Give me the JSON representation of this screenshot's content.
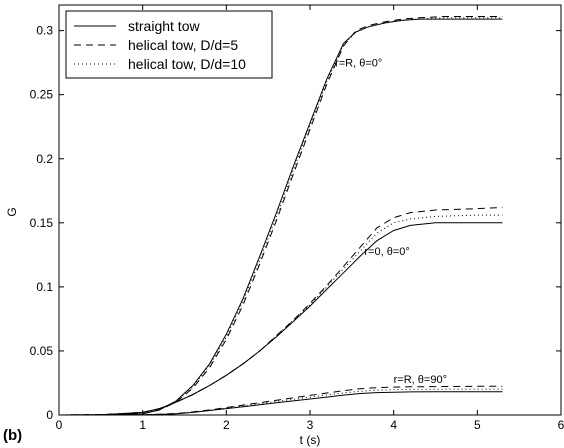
{
  "panel_label": "(b)",
  "chart_data": {
    "type": "line",
    "title": "",
    "xlabel": "t (s)",
    "ylabel": "G",
    "xlim": [
      0,
      6
    ],
    "ylim": [
      0,
      0.32
    ],
    "xticks": [
      0,
      1,
      2,
      3,
      4,
      5,
      6
    ],
    "yticks": [
      0,
      0.05,
      0.1,
      0.15,
      0.2,
      0.25,
      0.3
    ],
    "xtick_labels": [
      "0",
      "1",
      "2",
      "3",
      "4",
      "5",
      "6"
    ],
    "ytick_labels": [
      "0",
      "0.05",
      "0.1",
      "0.15",
      "0.2",
      "0.25",
      "0.3"
    ],
    "grid": false,
    "legend_position": "top-left",
    "legend": [
      {
        "label": "straight tow",
        "style": "solid"
      },
      {
        "label": "helical tow, D/d=5",
        "style": "dashed"
      },
      {
        "label": "helical tow, D/d=10",
        "style": "dotted"
      }
    ],
    "annotations": [
      {
        "text": "r=R, θ=0°",
        "x": 3.3,
        "y": 0.272
      },
      {
        "text": "r=0, θ=0°",
        "x": 3.65,
        "y": 0.125
      },
      {
        "text": "r=R, θ=90°",
        "x": 4.0,
        "y": 0.025
      }
    ],
    "groups": [
      {
        "name": "r=R, θ=0°",
        "series": [
          {
            "name": "straight tow",
            "style": "solid",
            "x": [
              0,
              0.5,
              1.0,
              1.2,
              1.4,
              1.6,
              1.8,
              2.0,
              2.2,
              2.4,
              2.6,
              2.8,
              3.0,
              3.2,
              3.4,
              3.55,
              3.7,
              3.9,
              4.1,
              4.3,
              4.6,
              5.0,
              5.3
            ],
            "y": [
              0,
              0.0002,
              0.001,
              0.004,
              0.011,
              0.023,
              0.04,
              0.063,
              0.091,
              0.124,
              0.158,
              0.194,
              0.228,
              0.262,
              0.29,
              0.299,
              0.303,
              0.306,
              0.308,
              0.309,
              0.309,
              0.309,
              0.309
            ]
          },
          {
            "name": "helical tow, D/d=5",
            "style": "dashed",
            "x": [
              0,
              0.5,
              1.0,
              1.2,
              1.4,
              1.6,
              1.8,
              2.0,
              2.2,
              2.4,
              2.6,
              2.8,
              3.0,
              3.2,
              3.4,
              3.55,
              3.7,
              3.9,
              4.1,
              4.3,
              4.6,
              5.0,
              5.3
            ],
            "y": [
              0,
              0.0002,
              0.001,
              0.004,
              0.01,
              0.021,
              0.037,
              0.059,
              0.086,
              0.118,
              0.152,
              0.188,
              0.223,
              0.258,
              0.288,
              0.3,
              0.304,
              0.307,
              0.309,
              0.31,
              0.311,
              0.311,
              0.311
            ]
          },
          {
            "name": "helical tow, D/d=10",
            "style": "dotted",
            "x": [
              0,
              0.5,
              1.0,
              1.2,
              1.4,
              1.6,
              1.8,
              2.0,
              2.2,
              2.4,
              2.6,
              2.8,
              3.0,
              3.2,
              3.4,
              3.55,
              3.7,
              3.9,
              4.1,
              4.3,
              4.6,
              5.0,
              5.3
            ],
            "y": [
              0,
              0.0002,
              0.001,
              0.004,
              0.01,
              0.022,
              0.039,
              0.061,
              0.089,
              0.121,
              0.155,
              0.191,
              0.226,
              0.26,
              0.289,
              0.299,
              0.303,
              0.306,
              0.308,
              0.309,
              0.31,
              0.31,
              0.31
            ]
          }
        ]
      },
      {
        "name": "r=0, θ=0°",
        "series": [
          {
            "name": "straight tow",
            "style": "solid",
            "x": [
              0,
              0.5,
              1.0,
              1.2,
              1.4,
              1.6,
              1.8,
              2.0,
              2.2,
              2.4,
              2.6,
              2.8,
              3.0,
              3.2,
              3.4,
              3.6,
              3.8,
              4.0,
              4.2,
              4.5,
              5.0,
              5.3
            ],
            "y": [
              0,
              0.0002,
              0.002,
              0.005,
              0.01,
              0.016,
              0.023,
              0.031,
              0.04,
              0.05,
              0.061,
              0.073,
              0.085,
              0.098,
              0.111,
              0.124,
              0.136,
              0.144,
              0.148,
              0.15,
              0.15,
              0.15
            ]
          },
          {
            "name": "helical tow, D/d=5",
            "style": "dashed",
            "x": [
              0,
              0.5,
              1.0,
              1.2,
              1.4,
              1.6,
              1.8,
              2.0,
              2.2,
              2.4,
              2.6,
              2.8,
              3.0,
              3.2,
              3.4,
              3.6,
              3.8,
              4.0,
              4.2,
              4.5,
              5.0,
              5.3
            ],
            "y": [
              0,
              0.0002,
              0.002,
              0.005,
              0.01,
              0.016,
              0.023,
              0.031,
              0.04,
              0.05,
              0.062,
              0.074,
              0.087,
              0.101,
              0.116,
              0.131,
              0.146,
              0.154,
              0.158,
              0.16,
              0.161,
              0.162
            ]
          },
          {
            "name": "helical tow, D/d=10",
            "style": "dotted",
            "x": [
              0,
              0.5,
              1.0,
              1.2,
              1.4,
              1.6,
              1.8,
              2.0,
              2.2,
              2.4,
              2.6,
              2.8,
              3.0,
              3.2,
              3.4,
              3.6,
              3.8,
              4.0,
              4.2,
              4.5,
              5.0,
              5.3
            ],
            "y": [
              0,
              0.0002,
              0.002,
              0.005,
              0.01,
              0.016,
              0.023,
              0.031,
              0.04,
              0.05,
              0.062,
              0.074,
              0.086,
              0.1,
              0.114,
              0.128,
              0.142,
              0.15,
              0.153,
              0.155,
              0.156,
              0.156
            ]
          }
        ]
      },
      {
        "name": "r=R, θ=90°",
        "series": [
          {
            "name": "straight tow",
            "style": "solid",
            "x": [
              0,
              0.5,
              1.0,
              1.2,
              1.4,
              1.6,
              1.8,
              2.0,
              2.2,
              2.4,
              2.6,
              2.8,
              3.0,
              3.2,
              3.4,
              3.6,
              3.8,
              4.0,
              4.2,
              4.5,
              5.0,
              5.3
            ],
            "y": [
              0,
              0,
              0.0001,
              0.0005,
              0.001,
              0.002,
              0.0035,
              0.005,
              0.0065,
              0.008,
              0.0095,
              0.011,
              0.0125,
              0.014,
              0.0155,
              0.0168,
              0.0175,
              0.0178,
              0.018,
              0.0181,
              0.0182,
              0.0182
            ]
          },
          {
            "name": "helical tow, D/d=5",
            "style": "dashed",
            "x": [
              0,
              0.5,
              1.0,
              1.2,
              1.4,
              1.6,
              1.8,
              2.0,
              2.2,
              2.4,
              2.6,
              2.8,
              3.0,
              3.2,
              3.4,
              3.6,
              3.8,
              4.0,
              4.2,
              4.5,
              5.0,
              5.3
            ],
            "y": [
              0,
              0,
              0.0001,
              0.0006,
              0.0012,
              0.0024,
              0.004,
              0.0058,
              0.0077,
              0.0096,
              0.0115,
              0.0134,
              0.0153,
              0.0172,
              0.019,
              0.0205,
              0.0213,
              0.0218,
              0.022,
              0.0222,
              0.0224,
              0.0225
            ]
          },
          {
            "name": "helical tow, D/d=10",
            "style": "dotted",
            "x": [
              0,
              0.5,
              1.0,
              1.2,
              1.4,
              1.6,
              1.8,
              2.0,
              2.2,
              2.4,
              2.6,
              2.8,
              3.0,
              3.2,
              3.4,
              3.6,
              3.8,
              4.0,
              4.2,
              4.5,
              5.0,
              5.3
            ],
            "y": [
              0,
              0,
              0.0001,
              0.0005,
              0.0011,
              0.0022,
              0.0037,
              0.0054,
              0.0071,
              0.0088,
              0.0105,
              0.0122,
              0.0139,
              0.0156,
              0.0172,
              0.0186,
              0.0194,
              0.0198,
              0.02,
              0.0201,
              0.0202,
              0.0202
            ]
          }
        ]
      }
    ]
  }
}
